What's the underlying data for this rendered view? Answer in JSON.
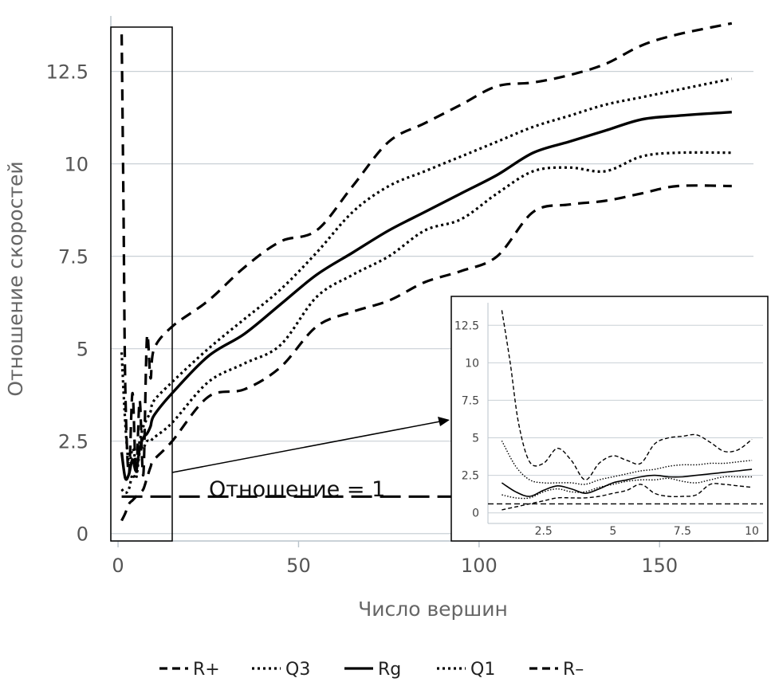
{
  "chart_data": {
    "type": "line",
    "xlabel": "Число вершин",
    "ylabel": "Отношение скоростей",
    "xlim": [
      -2,
      176
    ],
    "ylim": [
      -0.2,
      14.0
    ],
    "x_ticks": [
      "0",
      "50",
      "100",
      "150"
    ],
    "y_ticks": [
      "0",
      "2.5",
      "5",
      "7.5",
      "10",
      "12.5"
    ],
    "x_tick_values": [
      0,
      50,
      100,
      150
    ],
    "y_tick_values": [
      0,
      2.5,
      5,
      7.5,
      10,
      12.5
    ],
    "grid": "horizontal",
    "legend_placement": "bottom",
    "annotation": "Отношение = 1",
    "reference_line": 1,
    "series": [
      {
        "name": "R+",
        "style": "dashed",
        "points": [
          [
            1,
            13.5
          ],
          [
            1.5,
            9
          ],
          [
            2,
            4
          ],
          [
            3,
            1.6
          ],
          [
            4,
            3.8
          ],
          [
            5,
            1.6
          ],
          [
            6,
            3.6
          ],
          [
            7,
            1.6
          ],
          [
            8,
            5.3
          ],
          [
            9,
            4.2
          ],
          [
            10,
            5.0
          ],
          [
            15,
            5.6
          ],
          [
            25,
            6.3
          ],
          [
            35,
            7.2
          ],
          [
            45,
            7.9
          ],
          [
            55,
            8.2
          ],
          [
            65,
            9.4
          ],
          [
            75,
            10.6
          ],
          [
            85,
            11.1
          ],
          [
            95,
            11.6
          ],
          [
            105,
            12.1
          ],
          [
            115,
            12.2
          ],
          [
            125,
            12.4
          ],
          [
            135,
            12.7
          ],
          [
            145,
            13.2
          ],
          [
            155,
            13.5
          ],
          [
            170,
            13.8
          ]
        ]
      },
      {
        "name": "Q3",
        "style": "dotted",
        "points": [
          [
            1,
            4.9
          ],
          [
            2,
            3.0
          ],
          [
            3,
            1.9
          ],
          [
            4,
            2.3
          ],
          [
            5,
            2.0
          ],
          [
            6,
            2.5
          ],
          [
            7,
            2.9
          ],
          [
            8,
            3.1
          ],
          [
            9,
            3.3
          ],
          [
            10,
            3.6
          ],
          [
            15,
            4.1
          ],
          [
            25,
            5.0
          ],
          [
            35,
            5.8
          ],
          [
            45,
            6.6
          ],
          [
            55,
            7.6
          ],
          [
            65,
            8.7
          ],
          [
            75,
            9.4
          ],
          [
            85,
            9.8
          ],
          [
            95,
            10.2
          ],
          [
            105,
            10.6
          ],
          [
            115,
            11.0
          ],
          [
            125,
            11.3
          ],
          [
            135,
            11.6
          ],
          [
            145,
            11.8
          ],
          [
            155,
            12.0
          ],
          [
            170,
            12.3
          ]
        ]
      },
      {
        "name": "Rg",
        "style": "solid",
        "points": [
          [
            1,
            2.2
          ],
          [
            2,
            1.5
          ],
          [
            3,
            1.6
          ],
          [
            4,
            2.0
          ],
          [
            5,
            1.7
          ],
          [
            6,
            2.3
          ],
          [
            7,
            2.6
          ],
          [
            8,
            2.7
          ],
          [
            9,
            2.9
          ],
          [
            10,
            3.2
          ],
          [
            15,
            3.8
          ],
          [
            25,
            4.8
          ],
          [
            35,
            5.4
          ],
          [
            45,
            6.2
          ],
          [
            55,
            7.0
          ],
          [
            65,
            7.6
          ],
          [
            75,
            8.2
          ],
          [
            85,
            8.7
          ],
          [
            95,
            9.2
          ],
          [
            105,
            9.7
          ],
          [
            115,
            10.3
          ],
          [
            125,
            10.6
          ],
          [
            135,
            10.9
          ],
          [
            145,
            11.2
          ],
          [
            155,
            11.3
          ],
          [
            170,
            11.4
          ]
        ]
      },
      {
        "name": "Q1",
        "style": "dotted",
        "points": [
          [
            1,
            1.2
          ],
          [
            2,
            1.1
          ],
          [
            3,
            1.2
          ],
          [
            4,
            1.6
          ],
          [
            5,
            1.5
          ],
          [
            6,
            2.2
          ],
          [
            7,
            2.3
          ],
          [
            8,
            2.5
          ],
          [
            9,
            2.5
          ],
          [
            10,
            2.6
          ],
          [
            15,
            3.0
          ],
          [
            25,
            4.1
          ],
          [
            35,
            4.6
          ],
          [
            45,
            5.1
          ],
          [
            55,
            6.4
          ],
          [
            65,
            7.0
          ],
          [
            75,
            7.5
          ],
          [
            85,
            8.2
          ],
          [
            95,
            8.5
          ],
          [
            105,
            9.2
          ],
          [
            115,
            9.8
          ],
          [
            125,
            9.9
          ],
          [
            135,
            9.8
          ],
          [
            145,
            10.2
          ],
          [
            155,
            10.3
          ],
          [
            170,
            10.3
          ]
        ]
      },
      {
        "name": "R-",
        "style": "dashed",
        "points": [
          [
            1,
            0.35
          ],
          [
            2,
            0.55
          ],
          [
            3,
            0.8
          ],
          [
            4,
            0.9
          ],
          [
            5,
            1.0
          ],
          [
            6,
            1.1
          ],
          [
            7,
            1.2
          ],
          [
            8,
            1.5
          ],
          [
            9,
            1.8
          ],
          [
            10,
            2.0
          ],
          [
            15,
            2.5
          ],
          [
            25,
            3.7
          ],
          [
            35,
            3.9
          ],
          [
            45,
            4.5
          ],
          [
            55,
            5.6
          ],
          [
            65,
            6.0
          ],
          [
            75,
            6.3
          ],
          [
            85,
            6.8
          ],
          [
            95,
            7.1
          ],
          [
            105,
            7.5
          ],
          [
            115,
            8.7
          ],
          [
            125,
            8.9
          ],
          [
            135,
            9.0
          ],
          [
            145,
            9.2
          ],
          [
            155,
            9.4
          ],
          [
            170,
            9.4
          ]
        ]
      }
    ],
    "inset": {
      "xlim": [
        0.5,
        10.4
      ],
      "ylim": [
        -0.6,
        14.0
      ],
      "x_ticks": [
        "2.5",
        "5",
        "7.5",
        "10"
      ],
      "y_ticks": [
        "0",
        "2.5",
        "5",
        "7.5",
        "10",
        "12.5"
      ],
      "x_tick_values": [
        2.5,
        5,
        7.5,
        10
      ],
      "y_tick_values": [
        0,
        2.5,
        5,
        7.5,
        10,
        12.5
      ],
      "reference_line": 0.6,
      "series": [
        {
          "style": "dashed",
          "points": [
            [
              1,
              13.5
            ],
            [
              1.3,
              10
            ],
            [
              1.6,
              6
            ],
            [
              2,
              3.4
            ],
            [
              2.5,
              3.3
            ],
            [
              3,
              4.3
            ],
            [
              3.5,
              3.5
            ],
            [
              4,
              2.2
            ],
            [
              4.5,
              3.3
            ],
            [
              5,
              3.8
            ],
            [
              5.5,
              3.5
            ],
            [
              6,
              3.3
            ],
            [
              6.5,
              4.6
            ],
            [
              7,
              5.0
            ],
            [
              7.5,
              5.1
            ],
            [
              8,
              5.2
            ],
            [
              8.5,
              4.7
            ],
            [
              9,
              4.1
            ],
            [
              9.5,
              4.2
            ],
            [
              10,
              4.9
            ]
          ]
        },
        {
          "style": "dotted",
          "points": [
            [
              1,
              4.8
            ],
            [
              1.5,
              3.1
            ],
            [
              2,
              2.2
            ],
            [
              2.5,
              2.0
            ],
            [
              3,
              2.0
            ],
            [
              3.5,
              2.0
            ],
            [
              4,
              1.9
            ],
            [
              4.5,
              2.2
            ],
            [
              5,
              2.4
            ],
            [
              5.5,
              2.6
            ],
            [
              6,
              2.8
            ],
            [
              6.5,
              2.9
            ],
            [
              7,
              3.1
            ],
            [
              7.5,
              3.2
            ],
            [
              8,
              3.2
            ],
            [
              8.5,
              3.3
            ],
            [
              9,
              3.3
            ],
            [
              9.5,
              3.4
            ],
            [
              10,
              3.5
            ]
          ]
        },
        {
          "style": "solid",
          "points": [
            [
              1,
              2.0
            ],
            [
              1.5,
              1.4
            ],
            [
              2,
              1.1
            ],
            [
              2.5,
              1.5
            ],
            [
              3,
              1.8
            ],
            [
              3.5,
              1.6
            ],
            [
              4,
              1.3
            ],
            [
              4.5,
              1.6
            ],
            [
              5,
              2.0
            ],
            [
              5.5,
              2.2
            ],
            [
              6,
              2.4
            ],
            [
              6.5,
              2.5
            ],
            [
              7,
              2.4
            ],
            [
              7.5,
              2.4
            ],
            [
              8,
              2.5
            ],
            [
              8.5,
              2.6
            ],
            [
              9,
              2.7
            ],
            [
              9.5,
              2.8
            ],
            [
              10,
              2.9
            ]
          ]
        },
        {
          "style": "dotted",
          "points": [
            [
              1,
              1.2
            ],
            [
              1.5,
              1.0
            ],
            [
              2,
              1.0
            ],
            [
              2.5,
              1.4
            ],
            [
              3,
              1.6
            ],
            [
              3.5,
              1.4
            ],
            [
              4,
              1.4
            ],
            [
              4.5,
              1.7
            ],
            [
              5,
              1.9
            ],
            [
              5.5,
              2.1
            ],
            [
              6,
              2.2
            ],
            [
              6.5,
              2.2
            ],
            [
              7,
              2.3
            ],
            [
              7.5,
              2.1
            ],
            [
              8,
              2.0
            ],
            [
              8.5,
              2.2
            ],
            [
              9,
              2.4
            ],
            [
              9.5,
              2.4
            ],
            [
              10,
              2.4
            ]
          ]
        },
        {
          "style": "dashed",
          "points": [
            [
              1,
              0.2
            ],
            [
              1.5,
              0.4
            ],
            [
              2,
              0.6
            ],
            [
              2.5,
              0.8
            ],
            [
              3,
              1.0
            ],
            [
              3.5,
              1.0
            ],
            [
              4,
              1.0
            ],
            [
              4.5,
              1.1
            ],
            [
              5,
              1.3
            ],
            [
              5.5,
              1.5
            ],
            [
              6,
              1.9
            ],
            [
              6.5,
              1.3
            ],
            [
              7,
              1.1
            ],
            [
              7.5,
              1.1
            ],
            [
              8,
              1.2
            ],
            [
              8.5,
              1.9
            ],
            [
              9,
              1.9
            ],
            [
              9.5,
              1.8
            ],
            [
              10,
              1.7
            ]
          ]
        }
      ]
    }
  },
  "legend": [
    {
      "label": "R+",
      "style": "dashed"
    },
    {
      "label": "Q3",
      "style": "dotted"
    },
    {
      "label": "Rg",
      "style": "solid"
    },
    {
      "label": "Q1",
      "style": "dotted"
    },
    {
      "label": "R–",
      "style": "dashed"
    }
  ],
  "colors": {
    "line": "#000000",
    "grid": "#c9d0d6",
    "axis": "#b9c3cb"
  }
}
